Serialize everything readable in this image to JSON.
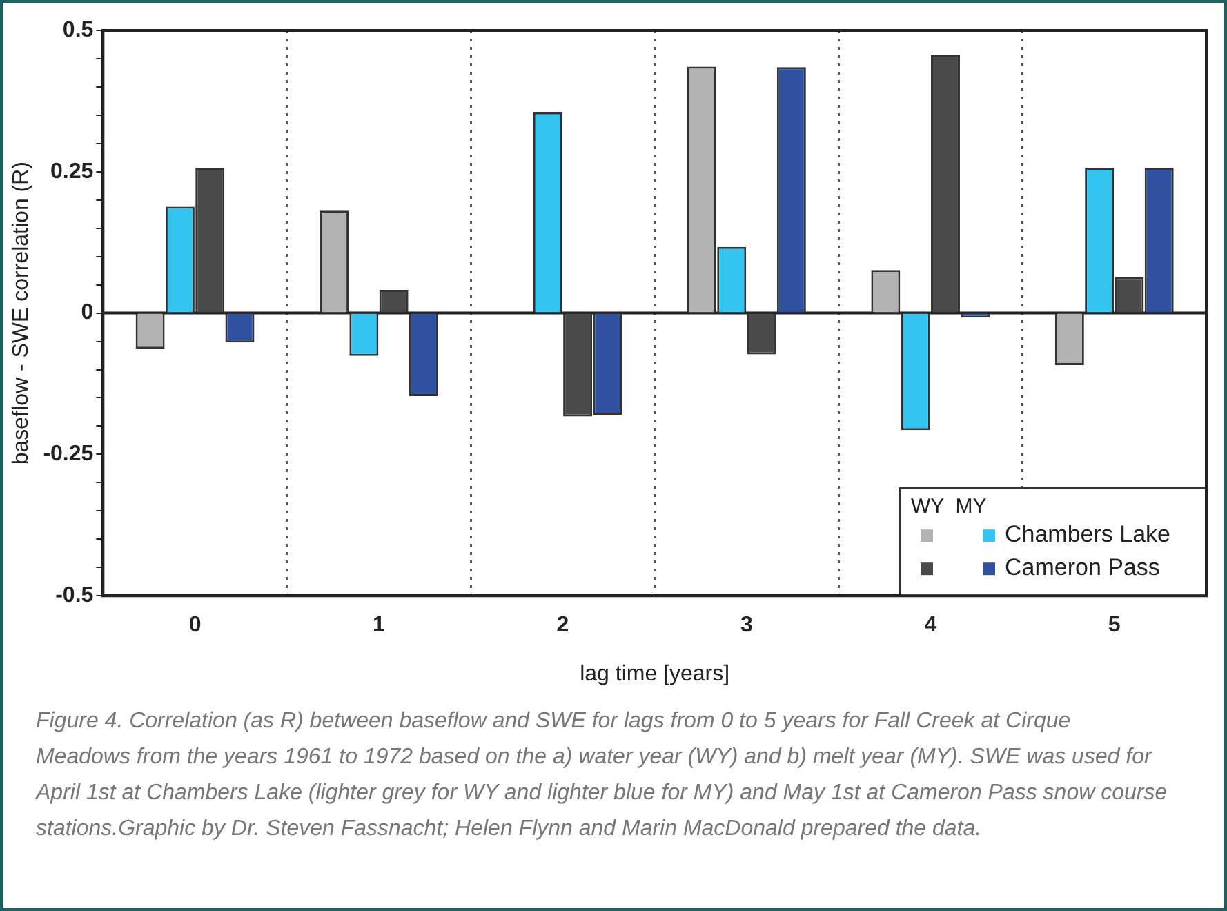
{
  "chart_data": {
    "type": "bar",
    "xlabel": "lag time [years]",
    "ylabel": "baseflow - SWE correlation (R)",
    "legend_title": "WY  MY",
    "categories": [
      "0",
      "1",
      "2",
      "3",
      "4",
      "5"
    ],
    "series": [
      {
        "color": "#b3b3b3",
        "values": [
          -0.063,
          0.181,
          0,
          0.436,
          0.076,
          -0.092
        ]
      },
      {
        "name": "Chambers Lake",
        "color": "#33c4f0",
        "values": [
          0.188,
          -0.076,
          0.355,
          0.117,
          -0.207,
          0.257
        ]
      },
      {
        "color": "#4a4a4a",
        "values": [
          0.257,
          0.041,
          -0.183,
          -0.073,
          0.457,
          0.064
        ]
      },
      {
        "name": "Cameron Pass",
        "color": "#3050a0",
        "values": [
          -0.052,
          -0.147,
          -0.18,
          0.435,
          -0.008,
          0.257
        ]
      }
    ],
    "ylim": [
      -0.5,
      0.5
    ],
    "yticks": [
      -0.5,
      {
        "value": -0.45,
        "label": null
      },
      {
        "value": -0.4,
        "label": null
      },
      {
        "value": -0.35,
        "label": null
      },
      {
        "value": -0.3,
        "label": null
      },
      -0.25,
      {
        "value": -0.2,
        "label": null
      },
      {
        "value": -0.15,
        "label": null
      },
      {
        "value": -0.1,
        "label": null
      },
      {
        "value": -0.05,
        "label": null
      },
      0,
      {
        "value": 0.05,
        "label": null
      },
      {
        "value": 0.1,
        "label": null
      },
      {
        "value": 0.15,
        "label": null
      },
      {
        "value": 0.2,
        "label": null
      },
      0.25,
      {
        "value": 0.3,
        "label": null
      },
      {
        "value": 0.35,
        "label": null
      },
      {
        "value": 0.4,
        "label": null
      },
      {
        "value": 0.45,
        "label": null
      },
      0.5
    ],
    "grid": "x",
    "legend": "bottom right",
    "annotations": [
      "Figure 4. Correlation (as R) between baseflow and SWE for lags from 0 to 5 years for Fall Creek at Cirque Meadows from the years 1961 to 1972 based on the a) water year (WY) and b) melt year (MY). SWE was used for April 1st at Chambers Lake (lighter grey for WY and lighter blue for MY) and May 1st at Cameron Pass snow course stations.Graphic by Dr. Steven Fassnacht; Helen Flynn and Marin MacDonald prepared the data."
    ]
  }
}
